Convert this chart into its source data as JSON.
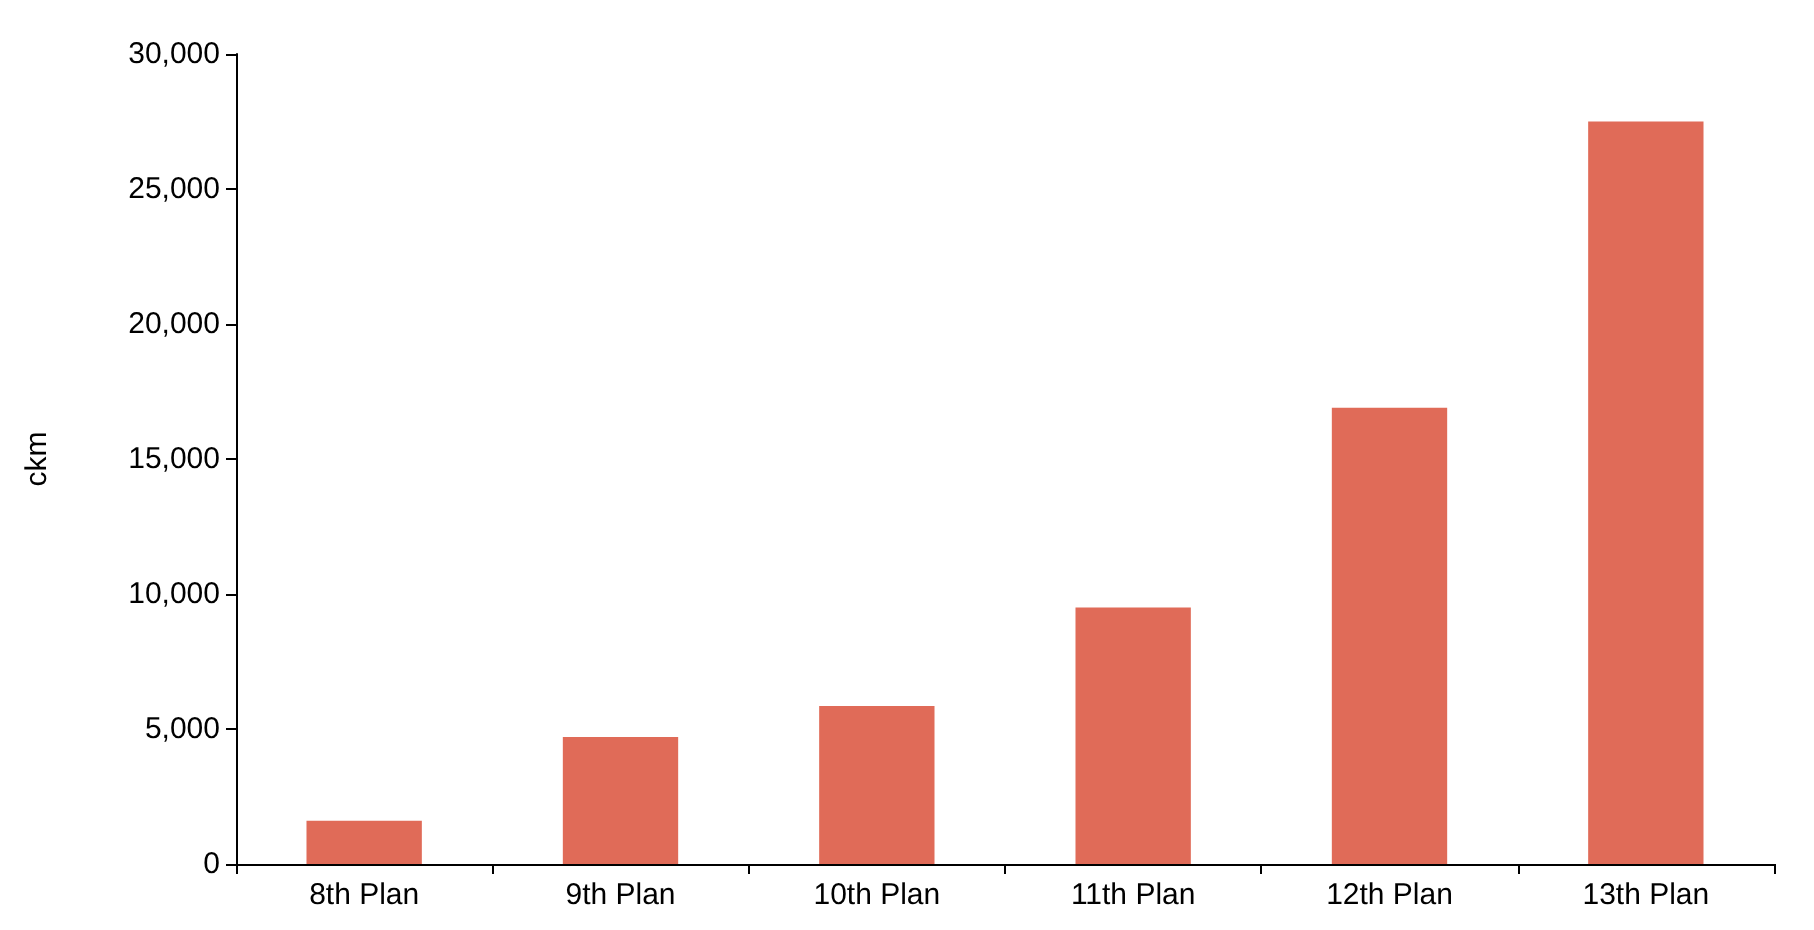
{
  "chart_data": {
    "type": "bar",
    "ylabel": "ckm",
    "categories": [
      "8th Plan",
      "9th Plan",
      "10th Plan",
      "11th Plan",
      "12th Plan",
      "13th Plan"
    ],
    "values": [
      1600,
      4700,
      5850,
      9500,
      16900,
      27500
    ],
    "color": "#e06b58",
    "ylim": [
      0,
      30000
    ],
    "yticks": [
      0,
      {
        "value": 5000,
        "label": "5,000"
      },
      {
        "value": 10000,
        "label": "10,000"
      },
      {
        "value": 15000,
        "label": "15,000"
      },
      {
        "value": 20000,
        "label": "20,000"
      },
      {
        "value": 25000,
        "label": "25,000"
      },
      {
        "value": 30000,
        "label": "30,000"
      }
    ],
    "grid": false
  }
}
